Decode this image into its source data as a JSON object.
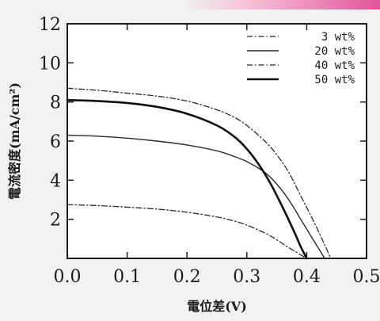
{
  "chart_data": {
    "type": "line",
    "xlabel": "電位差(V)",
    "ylabel": "電流密度(mA/cm²)",
    "xlim": [
      0.0,
      0.5
    ],
    "ylim": [
      0,
      12
    ],
    "x_ticks": [
      "0.0",
      "0.1",
      "0.2",
      "0.3",
      "0.4",
      "0.5"
    ],
    "y_ticks": [
      "2",
      "4",
      "6",
      "8",
      "10",
      "12"
    ],
    "grid": false,
    "legend_position": "top-right",
    "series": [
      {
        "name": "3 wt%",
        "style": "dash-dot",
        "x": [
          0.0,
          0.05,
          0.1,
          0.15,
          0.2,
          0.25,
          0.28,
          0.3,
          0.33,
          0.35,
          0.37,
          0.4
        ],
        "y": [
          2.75,
          2.7,
          2.62,
          2.52,
          2.36,
          2.12,
          1.9,
          1.7,
          1.3,
          0.95,
          0.55,
          0.0
        ]
      },
      {
        "name": "20 wt%",
        "style": "solid",
        "x": [
          0.0,
          0.05,
          0.1,
          0.15,
          0.2,
          0.25,
          0.28,
          0.3,
          0.33,
          0.35,
          0.37,
          0.39,
          0.41,
          0.43
        ],
        "y": [
          6.3,
          6.25,
          6.15,
          6.0,
          5.8,
          5.5,
          5.2,
          4.95,
          4.4,
          3.8,
          3.0,
          2.0,
          1.0,
          0.0
        ]
      },
      {
        "name": "40 wt%",
        "style": "dash-dot",
        "x": [
          0.0,
          0.05,
          0.1,
          0.15,
          0.2,
          0.25,
          0.28,
          0.3,
          0.33,
          0.35,
          0.37,
          0.39,
          0.41,
          0.43,
          0.44
        ],
        "y": [
          8.7,
          8.6,
          8.45,
          8.3,
          8.05,
          7.6,
          7.2,
          6.8,
          6.0,
          5.3,
          4.4,
          3.2,
          2.0,
          0.7,
          0.0
        ]
      },
      {
        "name": "50 wt%",
        "style": "solid-bold",
        "x": [
          0.0,
          0.05,
          0.1,
          0.15,
          0.2,
          0.25,
          0.28,
          0.3,
          0.32,
          0.34,
          0.36,
          0.38,
          0.39,
          0.4
        ],
        "y": [
          8.1,
          8.05,
          7.95,
          7.75,
          7.4,
          6.8,
          6.2,
          5.6,
          4.8,
          3.8,
          2.6,
          1.3,
          0.6,
          0.0
        ]
      }
    ]
  }
}
